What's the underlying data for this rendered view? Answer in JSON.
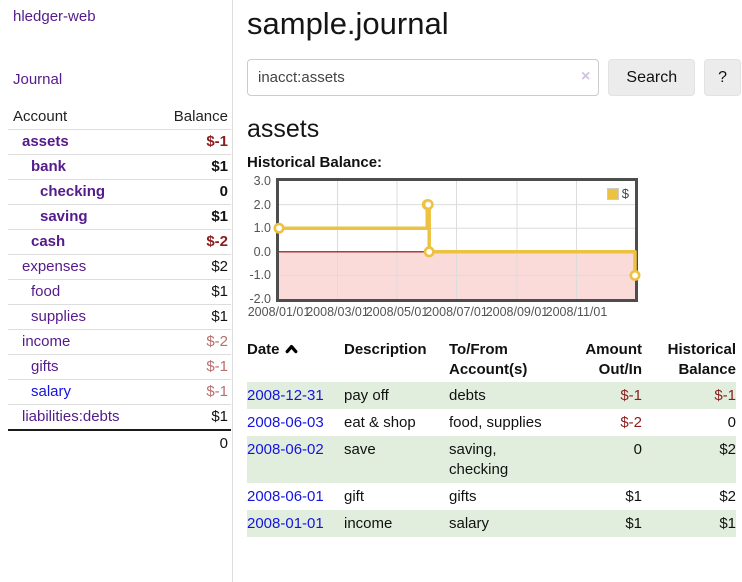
{
  "sidebar": {
    "app_title": "hledger-web",
    "journal_link": "Journal",
    "accounts_table": {
      "account_header": "Account",
      "balance_header": "Balance",
      "rows": [
        {
          "name": "assets",
          "indent": 1,
          "bold": true,
          "balance": "$-1",
          "balance_class": "neg"
        },
        {
          "name": "bank",
          "indent": 2,
          "bold": true,
          "balance": "$1",
          "balance_class": ""
        },
        {
          "name": "checking",
          "indent": 3,
          "bold": true,
          "balance": "0",
          "balance_class": ""
        },
        {
          "name": "saving",
          "indent": 3,
          "bold": true,
          "balance": "$1",
          "balance_class": ""
        },
        {
          "name": "cash",
          "indent": 2,
          "bold": true,
          "balance": "$-2",
          "balance_class": "neg"
        },
        {
          "name": "expenses",
          "indent": 1,
          "bold": false,
          "balance": "$2",
          "balance_class": ""
        },
        {
          "name": "food",
          "indent": 2,
          "bold": false,
          "balance": "$1",
          "balance_class": ""
        },
        {
          "name": "supplies",
          "indent": 2,
          "bold": false,
          "balance": "$1",
          "balance_class": ""
        },
        {
          "name": "income",
          "indent": 1,
          "bold": false,
          "balance": "$-2",
          "balance_class": "dim"
        },
        {
          "name": "gifts",
          "indent": 2,
          "bold": false,
          "balance": "$-1",
          "balance_class": "dim"
        },
        {
          "name": "salary",
          "indent": 2,
          "bold": false,
          "balance": "$-1",
          "balance_class": "dim",
          "link_class": "blue"
        },
        {
          "name": "liabilities:debts",
          "indent": 1,
          "bold": false,
          "balance": "$1",
          "balance_class": ""
        }
      ],
      "total": "0"
    }
  },
  "header": {
    "title": "sample.journal"
  },
  "search": {
    "value": "inacct:assets",
    "clear_icon": "×",
    "search_button_label": "Search",
    "help_button_label": "?"
  },
  "main": {
    "account_heading": "assets",
    "chart_title": "Historical Balance:"
  },
  "chart_data": {
    "type": "line",
    "step": true,
    "title": "Historical Balance",
    "x": [
      "2008-01-01",
      "2008-06-01",
      "2008-06-02",
      "2008-06-03",
      "2008-12-31"
    ],
    "series": [
      {
        "name": "$",
        "values": [
          1,
          2,
          2,
          0,
          -1
        ]
      }
    ],
    "xrange": [
      "2008-01-01",
      "2008-12-31"
    ],
    "ylim": [
      -2,
      3
    ],
    "yticks": [
      "3.0",
      "2.0",
      "1.0",
      "0.0",
      "-1.0",
      "-2.0"
    ],
    "xticks": [
      "2008/01/01",
      "2008/03/01",
      "2008/05/01",
      "2008/07/01",
      "2008/09/01",
      "2008/11/01"
    ],
    "legend": {
      "label": "$",
      "position": "top-right"
    },
    "grid": true,
    "colors": {
      "line": "#edc240",
      "negative_region": "#fbdada",
      "zero_line": "#8b0000",
      "grid": "#dcdcdc",
      "border": "#4d4d4d",
      "tick_text": "#545454"
    }
  },
  "transactions": {
    "headers": [
      "Date",
      "Description",
      "To/From Account(s)",
      "Amount Out/In",
      "Historical Balance"
    ],
    "sort": {
      "column": "Date",
      "direction": "asc"
    },
    "rows": [
      {
        "date": "2008-12-31",
        "description": "pay off",
        "accounts": "debts",
        "amount": "$-1",
        "balance": "$-1"
      },
      {
        "date": "2008-06-03",
        "description": "eat & shop",
        "accounts": "food, supplies",
        "amount": "$-2",
        "balance": "0"
      },
      {
        "date": "2008-06-02",
        "description": "save",
        "accounts": "saving, checking",
        "amount": "0",
        "balance": "$2"
      },
      {
        "date": "2008-06-01",
        "description": "gift",
        "accounts": "gifts",
        "amount": "$1",
        "balance": "$2"
      },
      {
        "date": "2008-01-01",
        "description": "income",
        "accounts": "salary",
        "amount": "$1",
        "balance": "$1"
      }
    ]
  },
  "colors": {
    "link_purple": "#551a8b",
    "link_blue": "#1414dd",
    "negative_strong": "#8b1d1d",
    "negative_dim": "#b96d6d",
    "row_stripe_green": "#e1eedd"
  }
}
